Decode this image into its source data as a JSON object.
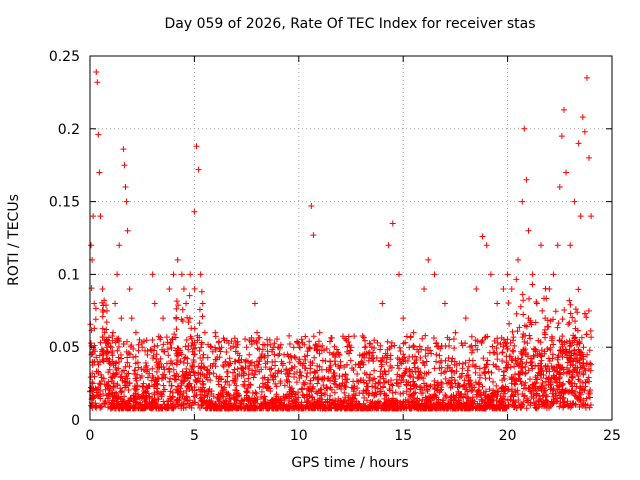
{
  "chart_data": {
    "type": "scatter",
    "title": "Day 059 of 2026, Rate Of TEC Index for receiver stas",
    "xlabel": "GPS time / hours",
    "ylabel": "ROTI / TECUs",
    "xlim": [
      0,
      25
    ],
    "ylim": [
      0,
      0.25
    ],
    "xticks": [
      "0",
      "5",
      "10",
      "15",
      "20",
      "25"
    ],
    "yticks": [
      "0",
      "0.05",
      "0.1",
      "0.15",
      "0.2",
      "0.25"
    ],
    "grid": true,
    "marker": "+",
    "color": "#ff0000",
    "series": [
      {
        "x": [
          0.05,
          0.1,
          0.15,
          0.2,
          0.3,
          0.35,
          0.4,
          0.45,
          0.5,
          0.6,
          0.7,
          0.8,
          0.9,
          1.0,
          1.1,
          1.2,
          1.3,
          1.4,
          1.5,
          1.6,
          1.65,
          1.7,
          1.75,
          1.8,
          1.9,
          2.0,
          2.2,
          2.5,
          3.0,
          3.1,
          3.5,
          3.8,
          4.0,
          4.2,
          4.4,
          4.5,
          4.6,
          4.8,
          5.0,
          5.1,
          5.2,
          5.3,
          5.4,
          5.5,
          5.8,
          6.0,
          6.3,
          6.5,
          7.0,
          7.5,
          7.9,
          8.0,
          8.5,
          9.0,
          9.5,
          10.0,
          10.5,
          10.6,
          10.7,
          11.0,
          11.5,
          12.0,
          12.5,
          13.0,
          13.5,
          14.0,
          14.3,
          14.5,
          14.8,
          15.0,
          15.5,
          16.0,
          16.2,
          16.5,
          17.0,
          17.5,
          18.0,
          18.5,
          18.8,
          19.0,
          19.2,
          19.5,
          19.8,
          20.0,
          20.2,
          20.5,
          20.7,
          20.8,
          20.9,
          21.0,
          21.2,
          21.4,
          21.6,
          21.8,
          22.0,
          22.2,
          22.4,
          22.5,
          22.6,
          22.7,
          22.8,
          23.0,
          23.2,
          23.4,
          23.5,
          23.6,
          23.7,
          23.8,
          23.9,
          24.0
        ],
        "y": [
          0.12,
          0.11,
          0.14,
          0.08,
          0.239,
          0.232,
          0.196,
          0.17,
          0.14,
          0.09,
          0.06,
          0.05,
          0.04,
          0.05,
          0.06,
          0.08,
          0.1,
          0.12,
          0.07,
          0.186,
          0.175,
          0.16,
          0.15,
          0.13,
          0.09,
          0.07,
          0.06,
          0.05,
          0.1,
          0.08,
          0.07,
          0.09,
          0.1,
          0.11,
          0.1,
          0.09,
          0.08,
          0.1,
          0.143,
          0.188,
          0.172,
          0.1,
          0.08,
          0.06,
          0.05,
          0.06,
          0.05,
          0.04,
          0.05,
          0.05,
          0.08,
          0.06,
          0.04,
          0.05,
          0.03,
          0.04,
          0.05,
          0.147,
          0.127,
          0.06,
          0.04,
          0.04,
          0.05,
          0.04,
          0.05,
          0.08,
          0.12,
          0.135,
          0.1,
          0.07,
          0.06,
          0.09,
          0.11,
          0.1,
          0.08,
          0.06,
          0.07,
          0.09,
          0.126,
          0.12,
          0.1,
          0.08,
          0.09,
          0.1,
          0.09,
          0.11,
          0.15,
          0.2,
          0.165,
          0.13,
          0.1,
          0.08,
          0.12,
          0.07,
          0.09,
          0.1,
          0.12,
          0.16,
          0.195,
          0.213,
          0.17,
          0.12,
          0.15,
          0.19,
          0.14,
          0.208,
          0.198,
          0.235,
          0.18,
          0.14
        ]
      }
    ]
  }
}
